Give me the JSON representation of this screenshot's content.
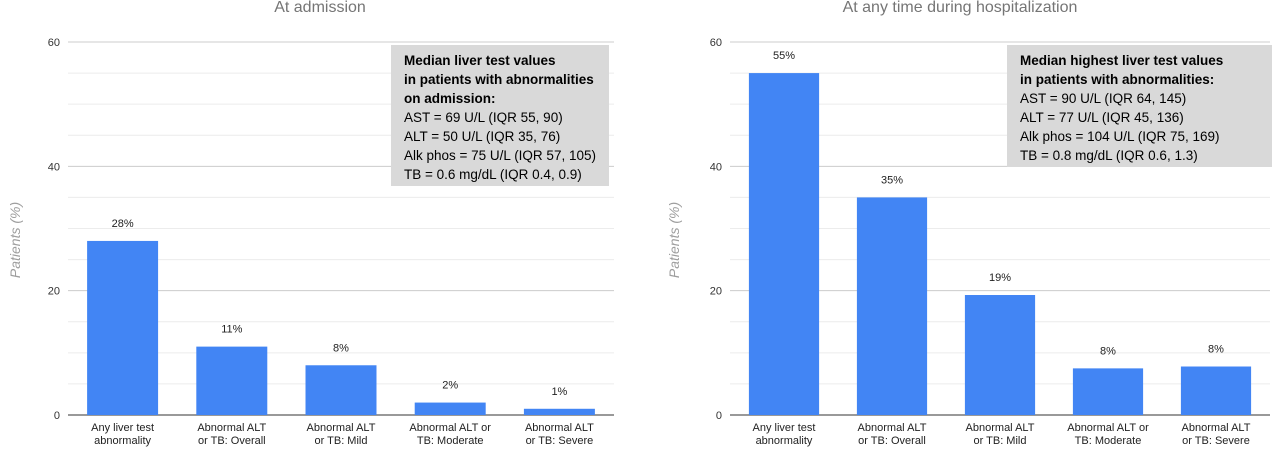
{
  "chart_data": [
    {
      "type": "bar",
      "title": "At admission",
      "ylabel": "Patients (%)",
      "ylim": [
        0,
        60
      ],
      "yticks": [
        0,
        20,
        40,
        60
      ],
      "grid": true,
      "categories": [
        [
          "Any liver test",
          "abnormality"
        ],
        [
          "Abnormal ALT",
          "or TB: Overall"
        ],
        [
          "Abnormal ALT",
          "or TB: Mild"
        ],
        [
          "Abnormal ALT or",
          "TB: Moderate"
        ],
        [
          "Abnormal ALT",
          "or TB: Severe"
        ]
      ],
      "values": [
        28,
        11,
        8,
        2,
        1
      ],
      "data_labels": [
        "28%",
        "11%",
        "8%",
        "2%",
        "1%"
      ],
      "bar_color": "#4285f4",
      "annotation": {
        "heading": [
          "Median liver test values",
          "in patients with abnormalities",
          "on admission:"
        ],
        "lines": [
          "AST = 69 U/L (IQR 55, 90)",
          "ALT = 50 U/L (IQR 35, 76)",
          "Alk phos = 75 U/L (IQR 57, 105)",
          "TB = 0.6 mg/dL (IQR 0.4, 0.9)"
        ],
        "placement": "top-right"
      }
    },
    {
      "type": "bar",
      "title": "At any time during hospitalization",
      "ylabel": "Patients (%)",
      "ylim": [
        0,
        60
      ],
      "yticks": [
        0,
        20,
        40,
        60
      ],
      "grid": true,
      "categories": [
        [
          "Any liver test",
          "abnormality"
        ],
        [
          "Abnormal ALT",
          "or TB: Overall"
        ],
        [
          "Abnormal ALT",
          "or TB: Mild"
        ],
        [
          "Abnormal ALT or",
          "TB: Moderate"
        ],
        [
          "Abnormal ALT",
          "or TB: Severe"
        ]
      ],
      "values": [
        55,
        35,
        19.3,
        7.5,
        7.8
      ],
      "data_labels": [
        "55%",
        "35%",
        "19%",
        "8%",
        "8%"
      ],
      "bar_color": "#4285f4",
      "annotation": {
        "heading": [
          "Median highest liver test values",
          "in patients with abnormalities:"
        ],
        "lines": [
          "AST = 90 U/L (IQR 64, 145)",
          "ALT = 77 U/L (IQR 45, 136)",
          "Alk phos = 104 U/L (IQR 75, 169)",
          "TB = 0.8 mg/dL (IQR 0.6, 1.3)"
        ],
        "placement": "top-right"
      }
    }
  ]
}
